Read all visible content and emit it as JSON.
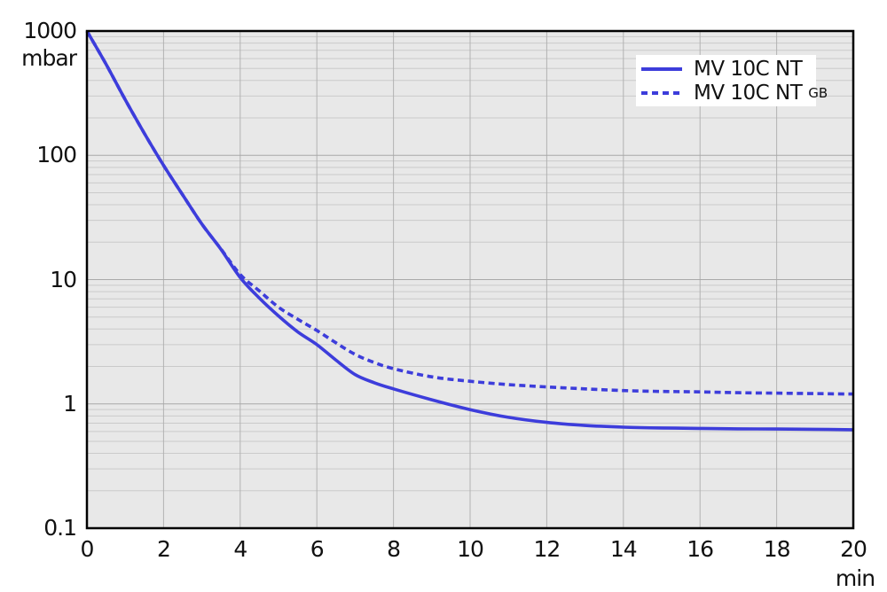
{
  "colors": {
    "curve_blue": "#3d3ddb",
    "plot_background": "#e8e8e8",
    "grid_minor": "#cacaca",
    "grid_major": "#a8a8a8",
    "grid_vertical": "#b2b2b2",
    "frame": "#000000",
    "text": "#111111",
    "legend_background": "#ffffff"
  },
  "legend": {
    "items": [
      {
        "label": "MV 10C NT",
        "suffix": "",
        "style": "solid"
      },
      {
        "label": "MV 10C NT",
        "suffix": "GB",
        "style": "dashed"
      }
    ]
  },
  "chart_data": {
    "type": "line",
    "title": "",
    "x_label": "min",
    "y_label": "mbar",
    "y_scale": "log",
    "xlim": [
      0,
      20
    ],
    "ylim": [
      0.1,
      1000
    ],
    "grid": true,
    "legend_position": "top-right",
    "x_ticks": {
      "values": [
        0,
        2,
        4,
        6,
        8,
        10,
        12,
        14,
        16,
        18,
        20
      ],
      "labels": [
        "0",
        "2",
        "4",
        "6",
        "8",
        "10",
        "12",
        "14",
        "16",
        "18",
        "20"
      ]
    },
    "y_ticks": {
      "values": [
        1000,
        100,
        10,
        1,
        0.1
      ],
      "labels": [
        "1000",
        "100",
        "10",
        "1",
        "0.1"
      ]
    },
    "x": [
      0,
      0.5,
      1,
      1.5,
      2,
      2.5,
      3,
      3.5,
      4,
      4.5,
      5,
      5.5,
      6,
      6.5,
      7,
      7.5,
      8,
      9,
      10,
      11,
      12,
      13,
      14,
      15,
      16,
      17,
      18,
      19,
      20
    ],
    "series": [
      {
        "name": "MV 10C NT",
        "line_style": "solid",
        "color": "#3d3ddb",
        "values": [
          1000,
          540,
          280,
          150,
          83,
          48,
          28,
          17.5,
          10.4,
          7.1,
          5.1,
          3.8,
          3.0,
          2.25,
          1.72,
          1.48,
          1.32,
          1.08,
          0.9,
          0.78,
          0.71,
          0.67,
          0.65,
          0.64,
          0.635,
          0.63,
          0.628,
          0.625,
          0.62
        ]
      },
      {
        "name": "MV 10C NT GB",
        "line_style": "dashed",
        "color": "#3d3ddb",
        "values": [
          1000,
          540,
          280,
          150,
          83,
          48,
          28,
          17.6,
          11.0,
          8.1,
          6.0,
          4.8,
          3.9,
          3.1,
          2.5,
          2.15,
          1.92,
          1.65,
          1.52,
          1.43,
          1.37,
          1.32,
          1.28,
          1.26,
          1.25,
          1.23,
          1.22,
          1.21,
          1.2
        ]
      }
    ]
  }
}
